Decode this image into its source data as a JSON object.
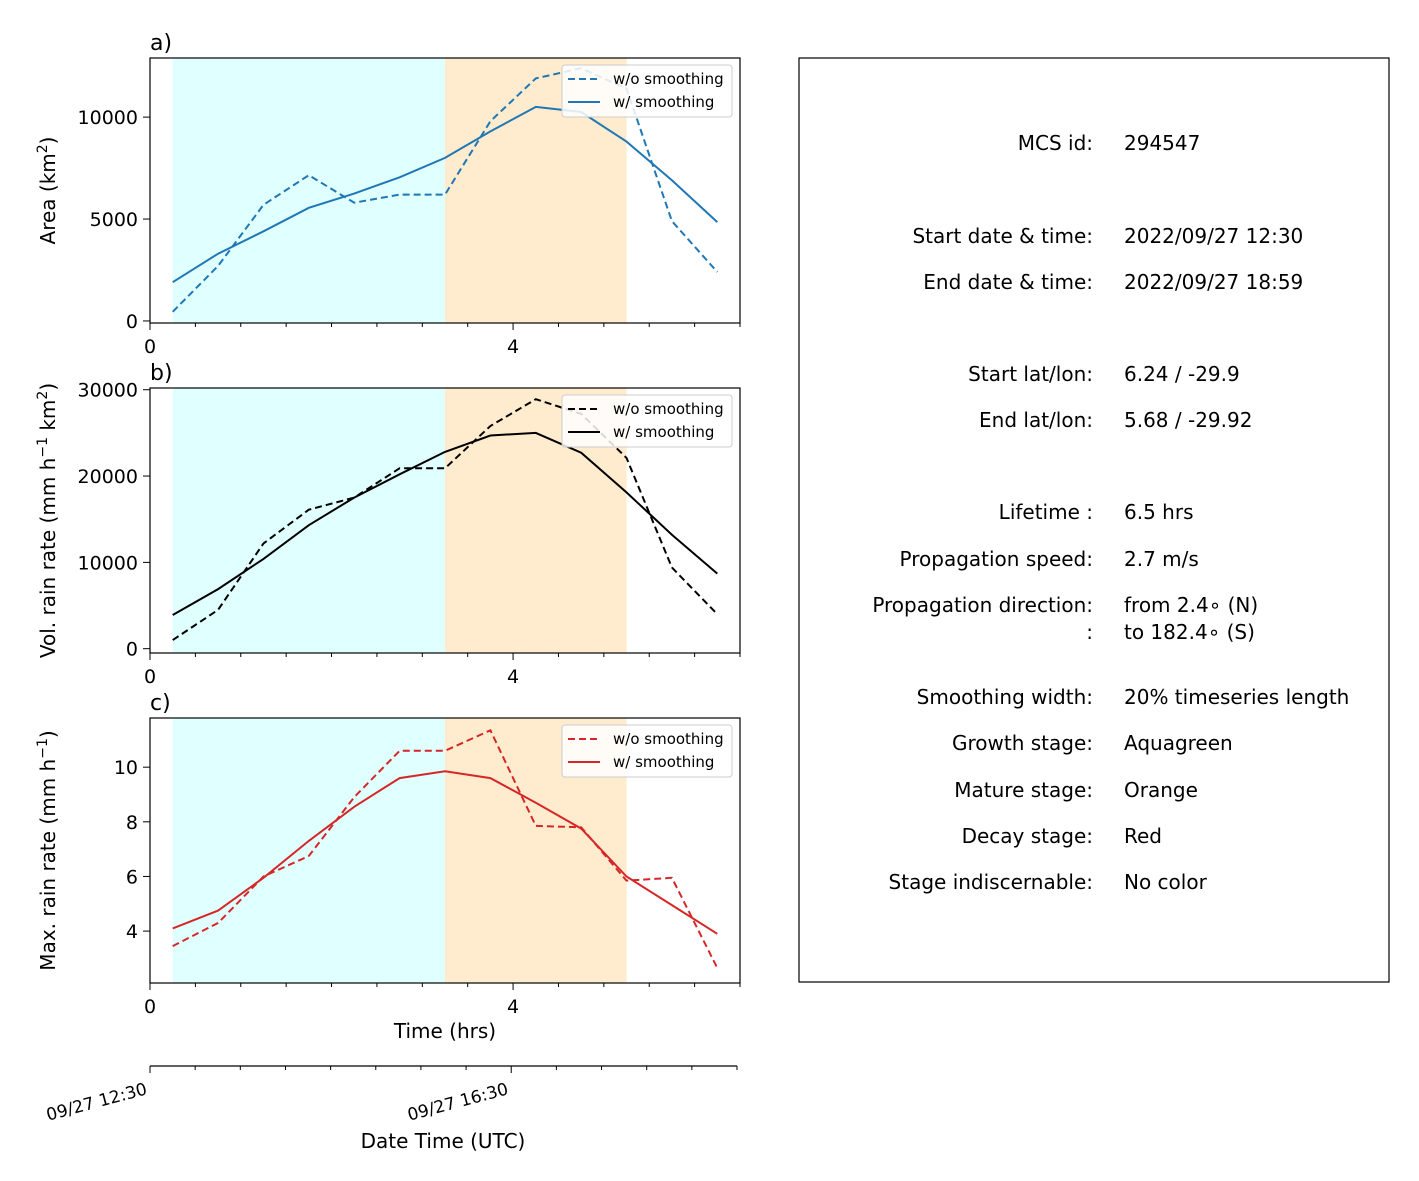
{
  "colors": {
    "growth_stage": "#e0ffff",
    "mature_stage": "#ffebcd",
    "area_series": "#1f77b4",
    "volrain_series": "#000000",
    "maxrain_series": "#d62728"
  },
  "chart_data": [
    {
      "type": "line",
      "panel": "a)",
      "xlabel": "",
      "ylabel": "Area  (km",
      "ylabel_sup": "2",
      "ylabel_tail": ")",
      "xlim": [
        0,
        6.5
      ],
      "ylim": [
        -100,
        12900
      ],
      "xticks": [
        0,
        4
      ],
      "xtick_labels": [
        "0",
        "4"
      ],
      "yticks": [
        0,
        5000,
        10000
      ],
      "ytick_labels": [
        "0",
        "5000",
        "10000"
      ],
      "stages": [
        {
          "name": "Growth stage",
          "color": "#e0ffff",
          "x0": 0.25,
          "x1": 3.25
        },
        {
          "name": "Mature stage",
          "color": "#ffebcd",
          "x0": 3.25,
          "x1": 5.25
        }
      ],
      "legend": "top-right",
      "series": [
        {
          "name": "w/o smoothing",
          "style": "dashed",
          "color": "#1f77b4",
          "x": [
            0.25,
            0.75,
            1.25,
            1.75,
            2.25,
            2.75,
            3.25,
            3.75,
            4.25,
            4.75,
            5.25,
            5.75,
            6.25
          ],
          "y": [
            450,
            2700,
            5700,
            7150,
            5800,
            6200,
            6200,
            9800,
            11900,
            12400,
            11400,
            4900,
            2400
          ]
        },
        {
          "name": "w/ smoothing",
          "style": "solid",
          "color": "#1f77b4",
          "x": [
            0.25,
            0.75,
            1.25,
            1.75,
            2.25,
            2.75,
            3.25,
            3.75,
            4.25,
            4.75,
            5.25,
            5.75,
            6.25
          ],
          "y": [
            1900,
            3300,
            4400,
            5550,
            6250,
            7050,
            8000,
            9300,
            10500,
            10250,
            8800,
            6900,
            4850
          ]
        }
      ]
    },
    {
      "type": "line",
      "panel": "b)",
      "xlabel": "",
      "ylabel": "Vol. rain rate (mm h",
      "ylabel_sup": "−1",
      "ylabel_mid": " km",
      "ylabel_sup2": "2",
      "ylabel_tail": ")",
      "xlim": [
        0,
        6.5
      ],
      "ylim": [
        -500,
        30200
      ],
      "xticks": [
        0,
        4
      ],
      "xtick_labels": [
        "0",
        "4"
      ],
      "yticks": [
        0,
        10000,
        20000,
        30000
      ],
      "ytick_labels": [
        "0",
        "10000",
        "20000",
        "30000"
      ],
      "stages": [
        {
          "name": "Growth stage",
          "color": "#e0ffff",
          "x0": 0.25,
          "x1": 3.25
        },
        {
          "name": "Mature stage",
          "color": "#ffebcd",
          "x0": 3.25,
          "x1": 5.25
        }
      ],
      "legend": "top-right",
      "series": [
        {
          "name": "w/o smoothing",
          "style": "dashed",
          "color": "#000000",
          "x": [
            0.25,
            0.75,
            1.25,
            1.75,
            2.25,
            2.75,
            3.25,
            3.75,
            4.25,
            4.75,
            5.25,
            5.75,
            6.25
          ],
          "y": [
            1000,
            4500,
            12200,
            16100,
            17500,
            20900,
            20900,
            25800,
            28900,
            27200,
            22100,
            9400,
            4000
          ]
        },
        {
          "name": "w/ smoothing",
          "style": "solid",
          "color": "#000000",
          "x": [
            0.25,
            0.75,
            1.25,
            1.75,
            2.25,
            2.75,
            3.25,
            3.75,
            4.25,
            4.75,
            5.25,
            5.75,
            6.25
          ],
          "y": [
            3900,
            6900,
            10400,
            14300,
            17500,
            20200,
            22800,
            24700,
            25000,
            22700,
            18100,
            13200,
            8700
          ]
        }
      ]
    },
    {
      "type": "line",
      "panel": "c)",
      "xlabel": "Time (hrs)",
      "ylabel": "Max. rain rate  (mm h",
      "ylabel_sup": "−1",
      "ylabel_tail": ")",
      "xlim": [
        0,
        6.5
      ],
      "ylim": [
        2.1,
        11.8
      ],
      "xticks": [
        0,
        4
      ],
      "xtick_labels": [
        "0",
        "4"
      ],
      "yticks": [
        4,
        6,
        8,
        10
      ],
      "ytick_labels": [
        "4",
        "6",
        "8",
        "10"
      ],
      "stages": [
        {
          "name": "Growth stage",
          "color": "#e0ffff",
          "x0": 0.25,
          "x1": 3.25
        },
        {
          "name": "Mature stage",
          "color": "#ffebcd",
          "x0": 3.25,
          "x1": 5.25
        }
      ],
      "legend": "top-right",
      "series": [
        {
          "name": "w/o smoothing",
          "style": "dashed",
          "color": "#d62728",
          "x": [
            0.25,
            0.75,
            1.25,
            1.75,
            2.25,
            2.75,
            3.25,
            3.75,
            4.25,
            4.75,
            5.25,
            5.75,
            6.25
          ],
          "y": [
            3.45,
            4.3,
            6.0,
            6.75,
            8.9,
            10.6,
            10.6,
            11.35,
            7.85,
            7.8,
            5.85,
            5.95,
            2.65
          ]
        },
        {
          "name": "w/ smoothing",
          "style": "solid",
          "color": "#d62728",
          "x": [
            0.25,
            0.75,
            1.25,
            1.75,
            2.25,
            2.75,
            3.25,
            3.75,
            4.25,
            4.75,
            5.25,
            5.75,
            6.25
          ],
          "y": [
            4.1,
            4.75,
            5.95,
            7.3,
            8.55,
            9.6,
            9.85,
            9.6,
            8.7,
            7.75,
            6.0,
            4.95,
            3.9
          ]
        }
      ]
    }
  ],
  "date_axis": {
    "xlabel": "Date Time (UTC)",
    "xlim": [
      0,
      6.5
    ],
    "tick_labels": [
      {
        "x": 0,
        "label": "09/27 12:30"
      },
      {
        "x": 4,
        "label": "09/27 16:30"
      }
    ]
  },
  "info": [
    {
      "key": "MCS id:",
      "value": "294547"
    },
    {
      "key": "Start date & time:",
      "value": "2022/09/27 12:30"
    },
    {
      "key": "End date & time:",
      "value": "2022/09/27 18:59"
    },
    {
      "key": "Start lat/lon:",
      "value": "6.24 / -29.9"
    },
    {
      "key": "End lat/lon:",
      "value": "5.68 / -29.92"
    },
    {
      "key": "Lifetime :",
      "value": "6.5 hrs"
    },
    {
      "key": "Propagation speed:",
      "value": "2.7 m/s"
    },
    {
      "key": "Propagation direction:",
      "value": "from   2.4∘ (N)"
    },
    {
      "key": ":",
      "value": "to   182.4∘ (S)"
    },
    {
      "key": "Smoothing width:",
      "value": "20% timeseries length"
    },
    {
      "key": "Growth stage:",
      "value": "Aquagreen"
    },
    {
      "key": "Mature stage:",
      "value": "Orange"
    },
    {
      "key": "Decay stage:",
      "value": "Red"
    },
    {
      "key": "Stage indiscernable:",
      "value": "No color"
    }
  ]
}
